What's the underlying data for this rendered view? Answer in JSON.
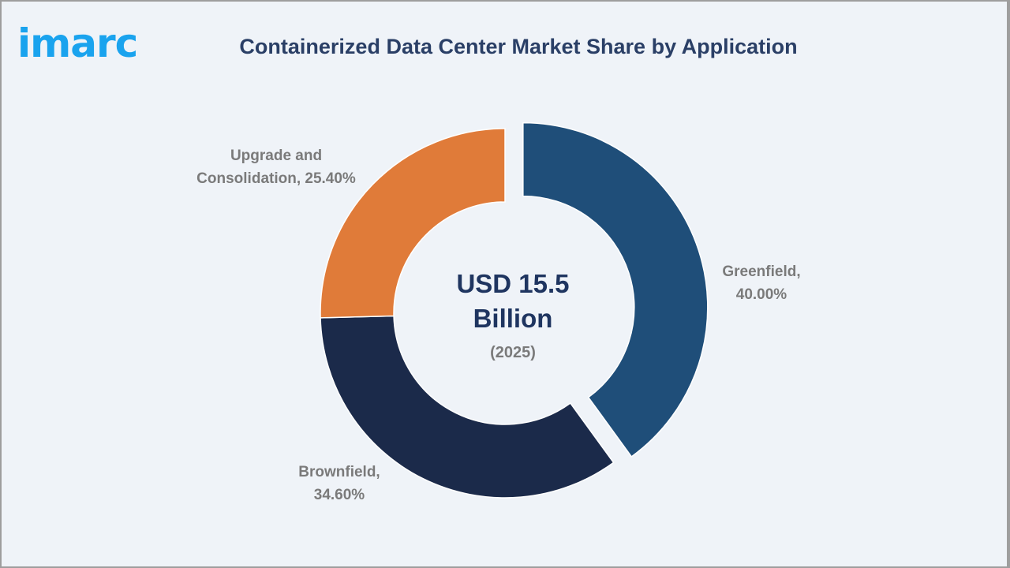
{
  "logo": {
    "text": "imarc",
    "color": "#1aa3ee"
  },
  "header": {
    "title": "Containerized Data Center Market Share by Application"
  },
  "center": {
    "value": "USD 15.5",
    "unit": "Billion",
    "year": "(2025)"
  },
  "labels": {
    "greenfield": {
      "name": "Greenfield,",
      "value": "40.00%"
    },
    "brownfield": {
      "name": "Brownfield,",
      "value": "34.60%"
    },
    "upgrade": {
      "name": "Upgrade and",
      "name2": "Consolidation, 25.40%"
    }
  },
  "chart_data": {
    "type": "pie",
    "subtype": "donut",
    "title": "Containerized Data Center Market Share by Application",
    "center_label": "USD 15.5 Billion (2025)",
    "categories": [
      "Greenfield",
      "Brownfield",
      "Upgrade and Consolidation"
    ],
    "values": [
      40.0,
      34.6,
      25.4
    ],
    "unit": "%",
    "colors": [
      "#1f4e79",
      "#1b2a4a",
      "#e07b39"
    ],
    "exploded": [
      "Greenfield"
    ],
    "legend": "none (data labels outside slices)"
  }
}
